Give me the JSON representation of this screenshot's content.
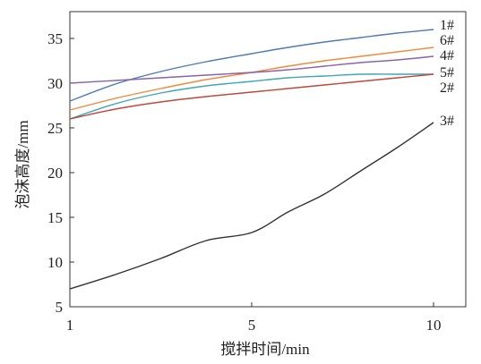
{
  "chart_data": {
    "type": "line",
    "xlabel": "搅拌时间/min",
    "ylabel": "泡沫高度/mm",
    "xlim": [
      1,
      10
    ],
    "ylim": [
      5,
      38
    ],
    "x_scale": "linear-mapped-ticks",
    "xticks": [
      1,
      5,
      10
    ],
    "yticks": [
      5,
      10,
      15,
      20,
      25,
      30,
      35
    ],
    "grid": false,
    "legend": "inline-right",
    "series": [
      {
        "name": "1#",
        "color": "#4e79b7",
        "x": [
          1,
          2,
          3,
          4,
          5,
          6,
          7,
          8,
          9,
          10
        ],
        "y": [
          28.0,
          29.9,
          31.3,
          32.4,
          33.3,
          34.0,
          34.6,
          35.1,
          35.6,
          36.0
        ]
      },
      {
        "name": "6#",
        "color": "#f08a3a",
        "x": [
          1,
          2,
          3,
          4,
          5,
          6,
          7,
          8,
          9,
          10
        ],
        "y": [
          27.0,
          28.3,
          29.4,
          30.4,
          31.2,
          31.9,
          32.5,
          33.0,
          33.5,
          34.0
        ]
      },
      {
        "name": "4#",
        "color": "#8a63a8",
        "x": [
          1,
          2,
          3,
          4,
          5,
          6,
          7,
          8,
          9,
          10
        ],
        "y": [
          30.0,
          30.3,
          30.6,
          30.9,
          31.2,
          31.5,
          31.9,
          32.3,
          32.6,
          33.0
        ]
      },
      {
        "name": "5#",
        "color": "#3fa6b5",
        "x": [
          1,
          2,
          3,
          4,
          5,
          6,
          7,
          8,
          9,
          10
        ],
        "y": [
          26.0,
          27.7,
          28.9,
          29.7,
          30.2,
          30.6,
          30.8,
          31.0,
          31.0,
          31.0
        ]
      },
      {
        "name": "2#",
        "color": "#c0483a",
        "x": [
          1,
          2,
          3,
          4,
          5,
          6,
          7,
          8,
          9,
          10
        ],
        "y": [
          26.0,
          27.1,
          27.9,
          28.5,
          29.0,
          29.4,
          29.8,
          30.2,
          30.6,
          31.0
        ]
      },
      {
        "name": "3#",
        "color": "#333333",
        "x": [
          1,
          2,
          3,
          4,
          5,
          6,
          7,
          8,
          9,
          10
        ],
        "y": [
          7.0,
          8.6,
          10.4,
          12.4,
          13.3,
          15.6,
          17.6,
          20.2,
          22.8,
          25.6
        ]
      }
    ]
  }
}
